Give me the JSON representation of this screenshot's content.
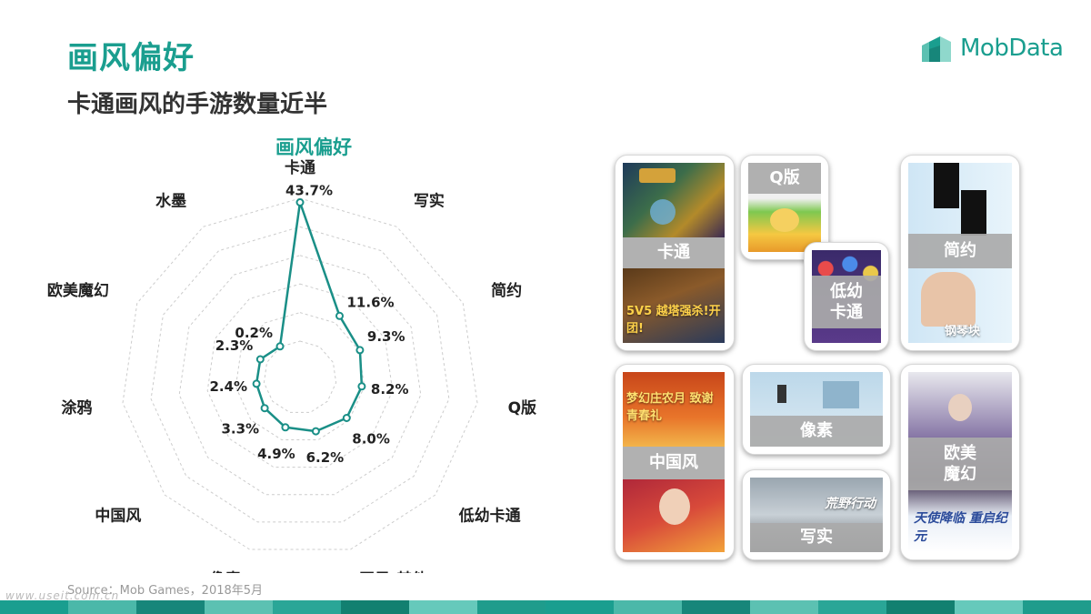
{
  "page": {
    "title": "画风偏好",
    "subtitle": "卡通画风的手游数量近半",
    "source": "Source：Mob Games，2018年5月",
    "watermark": "www.useit.com.cn"
  },
  "brand": {
    "name": "MobData",
    "logo_icon": "mobdata-logo-icon",
    "color": "#1a9e8f"
  },
  "colors": {
    "accent": "#1a9e8f",
    "series_line": "#1a8f87",
    "grid": "#cccccc",
    "bottom_bar": [
      "#1a9e8f",
      "#4bb8a9",
      "#17867a",
      "#5cc1b2",
      "#2aa697",
      "#128070",
      "#66c9bb",
      "#1f9c8c"
    ]
  },
  "chart_data": {
    "type": "radar",
    "title": "画风偏好",
    "categories": [
      "卡通",
      "写实",
      "简约",
      "Q版",
      "低幼卡通",
      "画风-其他",
      "像素",
      "中国风",
      "涂鸦",
      "欧美魔幻",
      "水墨"
    ],
    "value_labels": [
      "43.7%",
      "11.6%",
      "9.3%",
      "8.2%",
      "8.0%",
      "6.2%",
      "4.9%",
      "3.3%",
      "2.4%",
      "2.3%",
      "0.2%"
    ],
    "series": [
      {
        "values": [
          43.7,
          11.6,
          9.3,
          8.2,
          8.0,
          6.2,
          4.9,
          3.3,
          2.4,
          2.3,
          0.2
        ]
      }
    ],
    "unit": "%",
    "grid": true,
    "grid_style": "dashed"
  },
  "collage": {
    "cards": [
      {
        "label": "卡通",
        "pic_text_bottom": "5V5 越塔强杀!开团!"
      },
      {
        "label": "Q版"
      },
      {
        "label": "低幼\n卡通"
      },
      {
        "label": "简约",
        "pic_text_bottom": "钢琴块"
      },
      {
        "label": "中国风",
        "pic_text_top": "梦幻庄农月 致谢青春礼"
      },
      {
        "label": "像素"
      },
      {
        "label": "写实",
        "pic_text_top": "荒野行动"
      },
      {
        "label": "欧美\n魔幻",
        "pic_text_top": "天使降临 重启纪元"
      }
    ]
  }
}
